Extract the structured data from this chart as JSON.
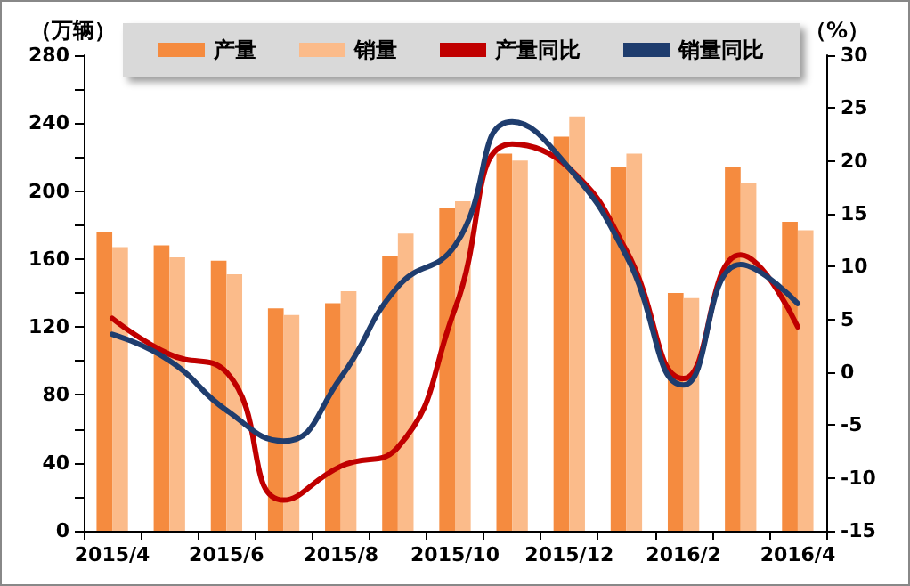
{
  "chart_data": {
    "type": "bar",
    "ylabel": "（万辆）",
    "y2label": "（%）",
    "categories": [
      "2015/4",
      null,
      "2015/6",
      null,
      "2015/8",
      null,
      "2015/10",
      null,
      "2015/12",
      null,
      "2016/2",
      null,
      "2016/4"
    ],
    "series": [
      {
        "name": "产量",
        "color": "#f58b3f",
        "values": [
          176,
          168,
          159,
          131,
          134,
          162,
          190,
          222,
          232,
          214,
          140,
          214,
          182
        ]
      },
      {
        "name": "销量",
        "color": "#fbbb8a",
        "values": [
          167,
          161,
          151,
          127,
          141,
          175,
          194,
          218,
          244,
          222,
          137,
          205,
          177
        ]
      },
      {
        "name": "产量同比",
        "type": "line",
        "axis": "y2",
        "color": "#c00000",
        "values": [
          5.1,
          1.7,
          0,
          -12.1,
          -8.9,
          -7.1,
          6,
          21.6,
          19.3,
          11.5,
          -0.6,
          11.1,
          4.3
        ]
      },
      {
        "name": "销量同比",
        "type": "line",
        "axis": "y2",
        "color": "#1f3d6e",
        "values": [
          3.6,
          1.1,
          -3.6,
          -6.5,
          -0.5,
          8.1,
          12,
          23.7,
          19.3,
          11,
          -1.2,
          10.2,
          6.5
        ]
      }
    ],
    "ylim": [
      0,
      280
    ],
    "yticks": [
      0,
      {
        "value": 20,
        "label": null
      },
      40,
      {
        "value": 60,
        "label": null
      },
      80,
      {
        "value": 100,
        "label": null
      },
      120,
      {
        "value": 140,
        "label": null
      },
      160,
      {
        "value": 180,
        "label": null
      },
      200,
      {
        "value": 220,
        "label": null
      },
      240,
      {
        "value": 260,
        "label": null
      },
      280
    ],
    "y2lim": [
      -15,
      30
    ],
    "y2ticks": [
      -15,
      -10,
      -5,
      0,
      5,
      10,
      15,
      20,
      25,
      30
    ],
    "legend": "top",
    "grid": false,
    "marker": "none"
  }
}
